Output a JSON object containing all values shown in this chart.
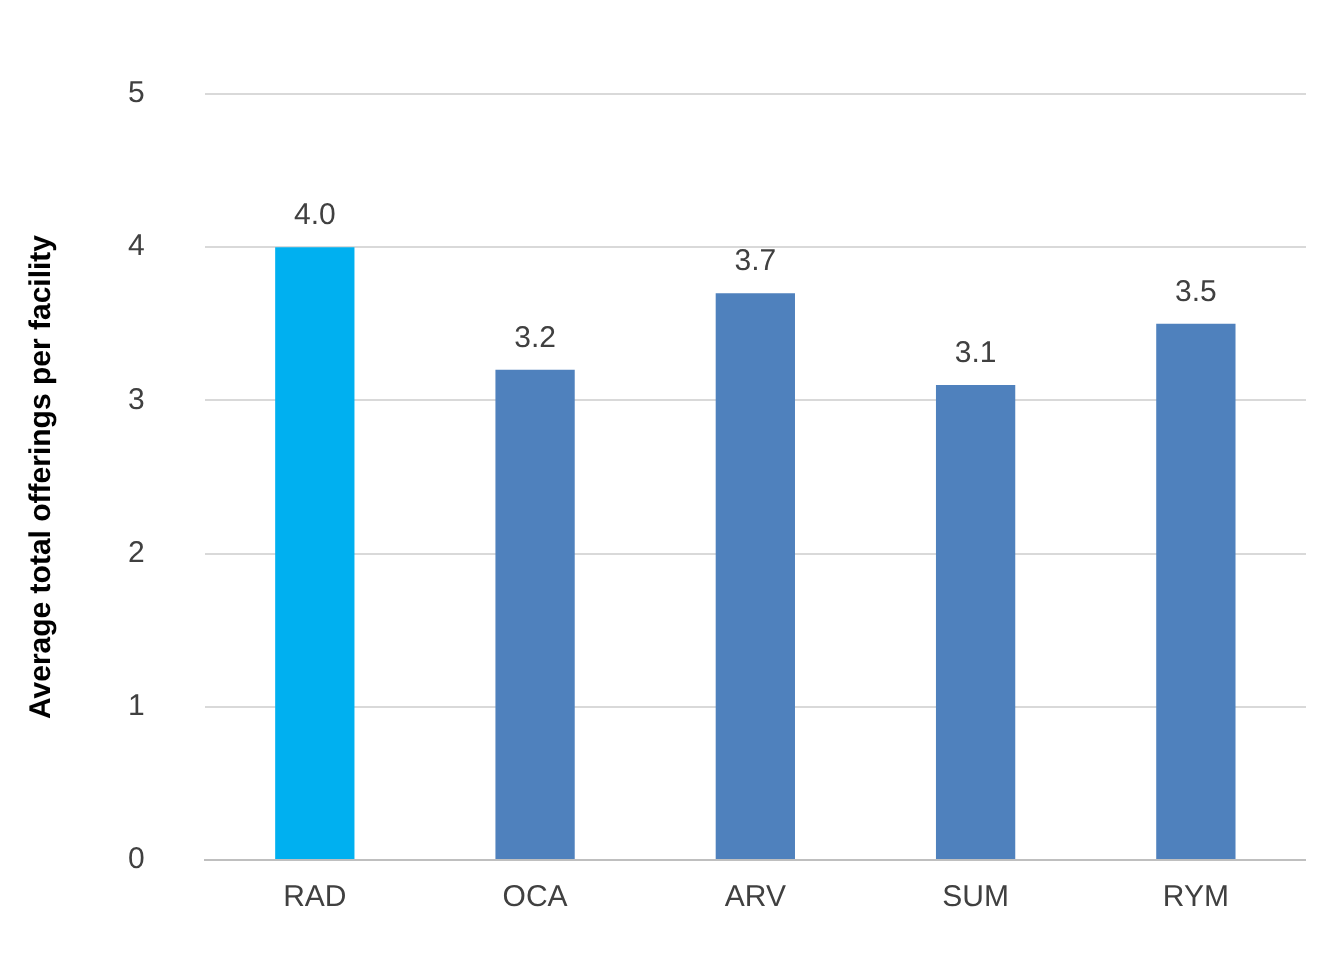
{
  "chart_data": {
    "type": "bar",
    "ylabel": "Average total offerings per facility",
    "categories": [
      "RAD",
      "OCA",
      "ARV",
      "SUM",
      "RYM"
    ],
    "values": [
      4.0,
      3.2,
      3.7,
      3.1,
      3.5
    ],
    "colors": [
      "#00b0f0",
      "#4f81bd",
      "#4f81bd",
      "#4f81bd",
      "#4f81bd"
    ],
    "value_labels": [
      "4.0",
      "3.2",
      "3.7",
      "3.1",
      "3.5"
    ],
    "ylim": [
      0,
      5
    ],
    "yticks": [
      0,
      1,
      2,
      3,
      4,
      5
    ],
    "grid": "y",
    "legend": false
  }
}
